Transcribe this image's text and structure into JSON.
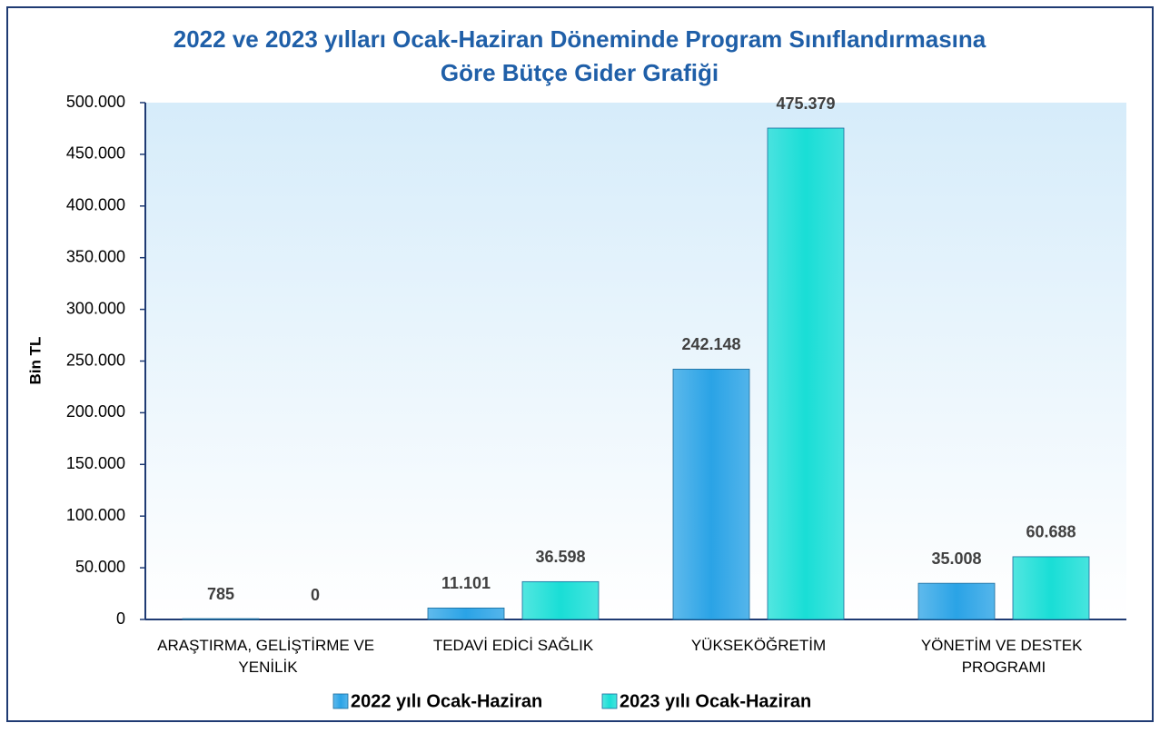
{
  "chart_data": {
    "type": "bar",
    "title": [
      "2022 ve 2023 yılları Ocak-Haziran Döneminde Program Sınıflandırmasına",
      "Göre Bütçe Gider Grafiği"
    ],
    "y_label": "Bin TL",
    "categories": [
      "ARAŞTIRMA, GELİŞTİRME VE YENİLİK",
      "TEDAVİ EDİCİ SAĞLIK",
      "YÜKSEKÖĞRETİM",
      "YÖNETİM VE DESTEK PROGRAMI"
    ],
    "series": [
      {
        "name": "2022 yılı Ocak-Haziran",
        "color": "#2aa3e6",
        "values": [
          785,
          11101,
          242148,
          35008
        ],
        "value_labels": [
          "785",
          "11.101",
          "242.148",
          "35.008"
        ]
      },
      {
        "name": "2023 yılı Ocak-Haziran",
        "color": "#19ded6",
        "values": [
          0,
          36598,
          475379,
          60688
        ],
        "value_labels": [
          "0",
          "36.598",
          "475.379",
          "60.688"
        ]
      }
    ],
    "ylim": [
      0,
      500000
    ],
    "yticks": [
      0,
      {
        "value": 50000,
        "label": "50.000"
      },
      {
        "value": 100000,
        "label": "100.000"
      },
      {
        "value": 150000,
        "label": "150.000"
      },
      {
        "value": 200000,
        "label": "200.000"
      },
      {
        "value": 250000,
        "label": "250.000"
      },
      {
        "value": 300000,
        "label": "300.000"
      },
      {
        "value": 350000,
        "label": "350.000"
      },
      {
        "value": 400000,
        "label": "400.000"
      },
      {
        "value": 450000,
        "label": "450.000"
      },
      {
        "value": {
          "value": 500000,
          "label": "500.000"
        },
        "label": "500.000"
      }
    ],
    "grid": false,
    "legend": "bottom"
  }
}
